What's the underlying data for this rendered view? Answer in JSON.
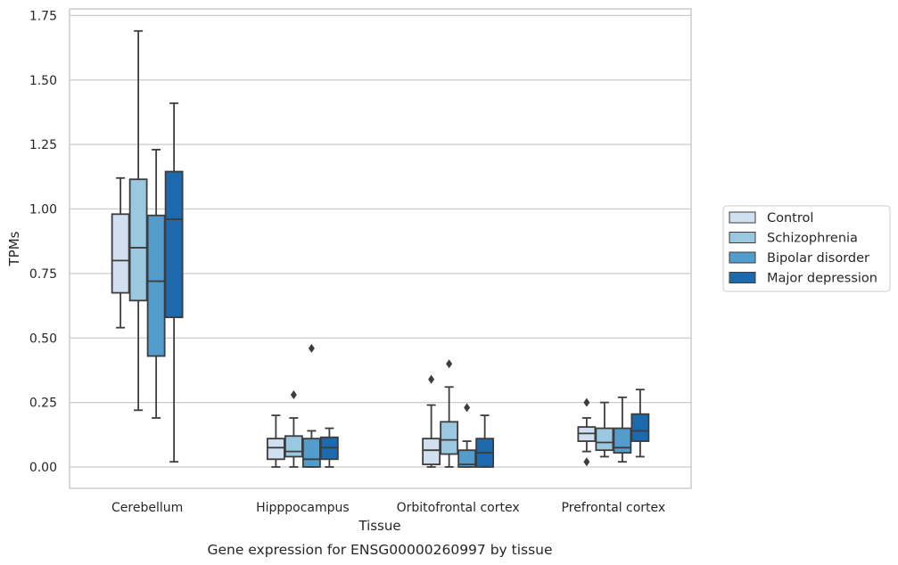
{
  "caption": "Gene expression for ENSG00000260997 by tissue",
  "chart_data": {
    "type": "box",
    "xlabel": "Tissue",
    "ylabel": "TPMs",
    "ylim": [
      -0.08,
      1.77
    ],
    "yticks": [
      "0.00",
      "0.25",
      "0.50",
      "0.75",
      "1.00",
      "1.25",
      "1.50",
      "1.75"
    ],
    "categories": [
      "Cerebellum",
      "Hipppocampus",
      "Orbitofrontal cortex",
      "Prefrontal cortex"
    ],
    "grid": "horizontal",
    "legend_position": "right",
    "series": [
      {
        "name": "Control",
        "color": "#d0e0f0",
        "boxes": [
          {
            "whislo": 0.54,
            "q1": 0.675,
            "med": 0.8,
            "q3": 0.98,
            "whishi": 1.12,
            "fliers": []
          },
          {
            "whislo": 0.0,
            "q1": 0.03,
            "med": 0.075,
            "q3": 0.11,
            "whishi": 0.2,
            "fliers": []
          },
          {
            "whislo": 0.0,
            "q1": 0.01,
            "med": 0.065,
            "q3": 0.11,
            "whishi": 0.24,
            "fliers": [
              0.34
            ]
          },
          {
            "whislo": 0.06,
            "q1": 0.1,
            "med": 0.13,
            "q3": 0.155,
            "whishi": 0.19,
            "fliers": [
              0.25,
              0.02
            ]
          }
        ]
      },
      {
        "name": "Schizophrenia",
        "color": "#9ac8e0",
        "boxes": [
          {
            "whislo": 0.22,
            "q1": 0.645,
            "med": 0.85,
            "q3": 1.115,
            "whishi": 1.69,
            "fliers": []
          },
          {
            "whislo": 0.0,
            "q1": 0.04,
            "med": 0.06,
            "q3": 0.12,
            "whishi": 0.19,
            "fliers": [
              0.28
            ]
          },
          {
            "whislo": 0.0,
            "q1": 0.05,
            "med": 0.105,
            "q3": 0.175,
            "whishi": 0.31,
            "fliers": [
              0.4
            ]
          },
          {
            "whislo": 0.04,
            "q1": 0.065,
            "med": 0.095,
            "q3": 0.15,
            "whishi": 0.25,
            "fliers": []
          }
        ]
      },
      {
        "name": "Bipolar disorder",
        "color": "#529dcc",
        "boxes": [
          {
            "whislo": 0.19,
            "q1": 0.43,
            "med": 0.72,
            "q3": 0.975,
            "whishi": 1.23,
            "fliers": []
          },
          {
            "whislo": 0.0,
            "q1": 0.0,
            "med": 0.03,
            "q3": 0.11,
            "whishi": 0.14,
            "fliers": [
              0.46
            ]
          },
          {
            "whislo": 0.0,
            "q1": 0.0,
            "med": 0.01,
            "q3": 0.065,
            "whishi": 0.1,
            "fliers": [
              0.23
            ]
          },
          {
            "whislo": 0.02,
            "q1": 0.055,
            "med": 0.075,
            "q3": 0.15,
            "whishi": 0.27,
            "fliers": []
          }
        ]
      },
      {
        "name": "Major depression",
        "color": "#1c6aad",
        "boxes": [
          {
            "whislo": 0.02,
            "q1": 0.58,
            "med": 0.96,
            "q3": 1.145,
            "whishi": 1.41,
            "fliers": []
          },
          {
            "whislo": 0.0,
            "q1": 0.03,
            "med": 0.075,
            "q3": 0.115,
            "whishi": 0.15,
            "fliers": []
          },
          {
            "whislo": 0.0,
            "q1": 0.0,
            "med": 0.055,
            "q3": 0.11,
            "whishi": 0.2,
            "fliers": []
          },
          {
            "whislo": 0.04,
            "q1": 0.1,
            "med": 0.14,
            "q3": 0.205,
            "whishi": 0.3,
            "fliers": []
          }
        ]
      }
    ]
  }
}
